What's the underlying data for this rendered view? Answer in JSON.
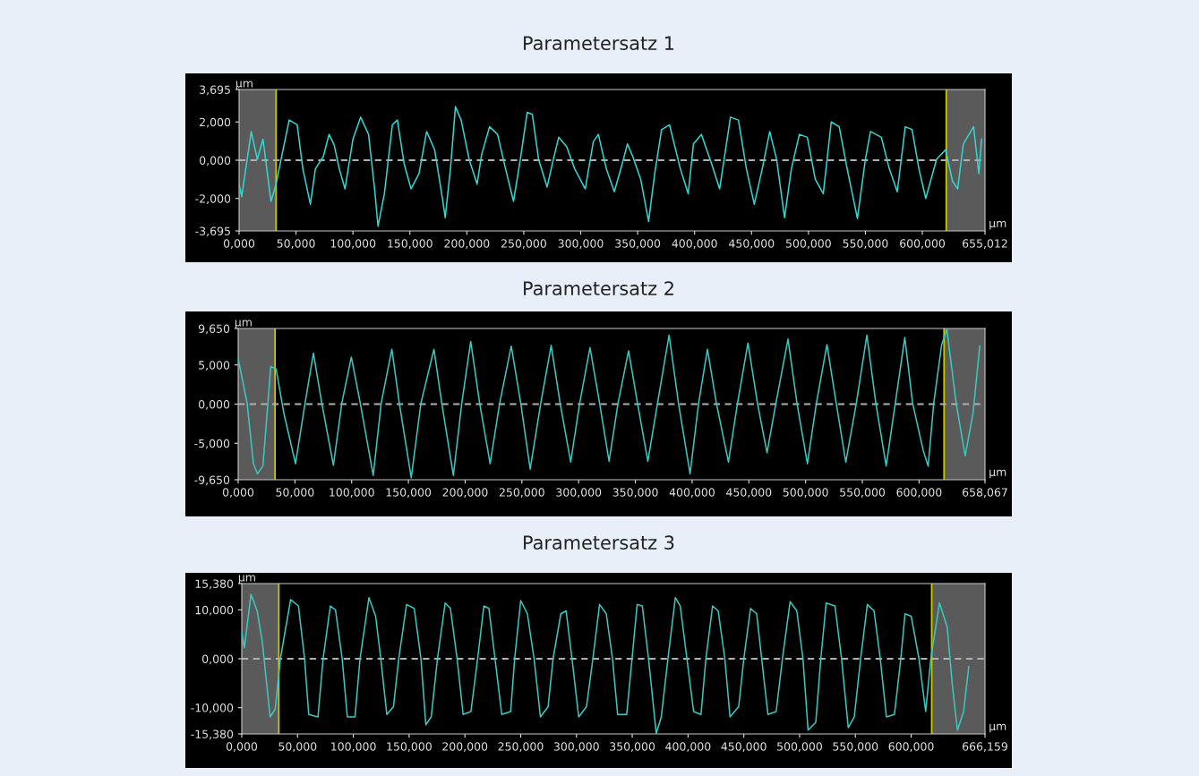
{
  "chart_data": [
    {
      "type": "line",
      "title": "Parametersatz 1",
      "xlabel": "µm",
      "ylabel": "µm",
      "xlim": [
        0,
        655.012
      ],
      "ylim": [
        -3.695,
        3.695
      ],
      "xticks": [
        {
          "value": 0,
          "label": "0,000"
        },
        {
          "value": 50,
          "label": "50,000"
        },
        {
          "value": 100,
          "label": "100,000"
        },
        {
          "value": 150,
          "label": "150,000"
        },
        {
          "value": 200,
          "label": "200,000"
        },
        {
          "value": 250,
          "label": "250,000"
        },
        {
          "value": 300,
          "label": "300,000"
        },
        {
          "value": 350,
          "label": "350,000"
        },
        {
          "value": 400,
          "label": "400,000"
        },
        {
          "value": 450,
          "label": "450,000"
        },
        {
          "value": 500,
          "label": "500,000"
        },
        {
          "value": 550,
          "label": "550,000"
        },
        {
          "value": 600,
          "label": "600,000"
        },
        {
          "value": 655.012,
          "label": "655,012"
        }
      ],
      "yticks": [
        {
          "value": -3.695,
          "label": "-3,695"
        },
        {
          "value": -2,
          "label": "-2,000"
        },
        {
          "value": 0,
          "label": "0,000"
        },
        {
          "value": 2,
          "label": "2,000"
        },
        {
          "value": 3.695,
          "label": "3,695"
        }
      ],
      "bands": [
        {
          "axis": "x",
          "from": 0,
          "to": 32.5,
          "color": "#5a5a5a"
        },
        {
          "axis": "x",
          "from": 621,
          "to": 655.012,
          "color": "#5a5a5a"
        }
      ],
      "ref_lines": [
        {
          "axis": "x",
          "value": 32.5,
          "color": "#c8c800"
        },
        {
          "axis": "x",
          "value": 621,
          "color": "#c8c800"
        },
        {
          "axis": "y",
          "value": 0,
          "color": "#b0b0b0",
          "line_style": "dashed"
        }
      ],
      "series": [
        {
          "color": "#33d6d0",
          "x": [
            0,
            2.3,
            10.7,
            16,
            21,
            28,
            32.5,
            36,
            44,
            51,
            56,
            62.6,
            67,
            74,
            79,
            83.5,
            88,
            93,
            100,
            106.7,
            113.7,
            119,
            122,
            127.6,
            134.6,
            139,
            145,
            151,
            158,
            164.7,
            171.7,
            178.6,
            181,
            185.6,
            190,
            195,
            202,
            209,
            213,
            220,
            227,
            234,
            241,
            247,
            253,
            257.5,
            263,
            270.5,
            276,
            280.7,
            287.7,
            294.7,
            304,
            311,
            315.5,
            322.5,
            329.5,
            336.4,
            341,
            345.7,
            352.7,
            359.6,
            365,
            371,
            378,
            387.5,
            394.4,
            399,
            406,
            415,
            422,
            431.5,
            438.5,
            445.5,
            452.4,
            459.4,
            466,
            472,
            479,
            485,
            492,
            499,
            506,
            513,
            520,
            527,
            534,
            543,
            550,
            554.5,
            564,
            571,
            578,
            585,
            591,
            597,
            603,
            612.5,
            620.4,
            626.5,
            631,
            636,
            645,
            649.6,
            652
          ],
          "values": [
            -1.25,
            -1.9,
            1.5,
            0.05,
            1.1,
            -2.15,
            -1.25,
            -0.2,
            2.1,
            1.85,
            -0.45,
            -2.3,
            -0.45,
            0.2,
            1.35,
            0.8,
            -0.45,
            -1.5,
            1.1,
            2.25,
            1.35,
            -1.5,
            -3.45,
            -1.75,
            1.85,
            2.1,
            -0.2,
            -1.5,
            -0.7,
            1.5,
            0.55,
            -2.0,
            -3.0,
            -0.45,
            2.8,
            2.1,
            0.05,
            -1.25,
            0.3,
            1.75,
            1.35,
            -0.45,
            -2.15,
            0.05,
            2.5,
            2.4,
            0.05,
            -1.4,
            0.05,
            1.2,
            0.7,
            -0.45,
            -1.5,
            0.95,
            1.35,
            -0.45,
            -1.65,
            -0.2,
            0.85,
            0.2,
            -1.0,
            -3.2,
            -0.7,
            1.6,
            1.85,
            -0.45,
            -1.75,
            0.85,
            1.35,
            -0.2,
            -1.5,
            2.25,
            2.1,
            -0.45,
            -2.3,
            -0.45,
            1.5,
            0.05,
            -3.0,
            -0.45,
            1.35,
            1.2,
            -1.0,
            -1.75,
            2.0,
            1.75,
            -0.45,
            -3.05,
            0.05,
            1.5,
            1.2,
            -0.45,
            -1.65,
            1.75,
            1.6,
            -0.45,
            -2.0,
            0.05,
            0.55,
            -1.1,
            -1.5,
            0.85,
            1.75,
            -0.7,
            1.1
          ]
        }
      ]
    },
    {
      "type": "line",
      "title": "Parametersatz 2",
      "xlabel": "µm",
      "ylabel": "µm",
      "xlim": [
        0,
        658.067
      ],
      "ylim": [
        -9.65,
        9.65
      ],
      "xticks": [
        {
          "value": 0,
          "label": "0,000"
        },
        {
          "value": 50,
          "label": "50,000"
        },
        {
          "value": 100,
          "label": "100,000"
        },
        {
          "value": 150,
          "label": "150,000"
        },
        {
          "value": 200,
          "label": "200,000"
        },
        {
          "value": 250,
          "label": "250,000"
        },
        {
          "value": 300,
          "label": "300,000"
        },
        {
          "value": 350,
          "label": "350,000"
        },
        {
          "value": 400,
          "label": "400,000"
        },
        {
          "value": 450,
          "label": "450,000"
        },
        {
          "value": 500,
          "label": "500,000"
        },
        {
          "value": 550,
          "label": "550,000"
        },
        {
          "value": 600,
          "label": "600,000"
        },
        {
          "value": 658.067,
          "label": "658,067"
        }
      ],
      "yticks": [
        {
          "value": -9.65,
          "label": "-9,650"
        },
        {
          "value": -5,
          "label": "-5,000"
        },
        {
          "value": 0,
          "label": "0,000"
        },
        {
          "value": 5,
          "label": "5,000"
        },
        {
          "value": 9.65,
          "label": "9,650"
        }
      ],
      "bands": [
        {
          "axis": "x",
          "from": 0,
          "to": 32.5,
          "color": "#5a5a5a"
        },
        {
          "axis": "x",
          "from": 622,
          "to": 658.067,
          "color": "#5a5a5a"
        }
      ],
      "ref_lines": [
        {
          "axis": "x",
          "value": 32.5,
          "color": "#c8c800"
        },
        {
          "axis": "x",
          "value": 622,
          "color": "#c8c800"
        },
        {
          "axis": "y",
          "value": 0,
          "color": "#b0b0b0",
          "line_style": "dashed"
        }
      ],
      "series": [
        {
          "color": "#3cc8c0",
          "x": [
            0,
            7.9,
            13.4,
            17,
            21.8,
            28.7,
            33.4,
            40.3,
            50.5,
            58.9,
            66.3,
            73.7,
            83.9,
            91.3,
            99.7,
            107.6,
            119,
            126,
            135.4,
            142,
            152.5,
            161,
            172.5,
            179.4,
            189.6,
            197,
            204.9,
            212.8,
            222,
            230.4,
            240.6,
            249,
            257.3,
            266.6,
            275.8,
            283.7,
            293,
            300.9,
            310,
            318.5,
            326.8,
            334.7,
            344,
            351.9,
            361,
            369.5,
            379.7,
            388,
            398.2,
            405.7,
            413.5,
            421.4,
            432,
            440,
            449.2,
            457.6,
            466,
            473.8,
            484.5,
            492.4,
            501.6,
            509.5,
            518.8,
            527,
            535.4,
            544.7,
            554,
            561.9,
            571,
            579,
            587.4,
            594.3,
            603.6,
            608,
            612.9,
            619.8,
            624.4,
            632.7,
            640.6,
            647.5,
            653.5
          ],
          "values": [
            5.8,
            0.1,
            -7.6,
            -8.9,
            -7.9,
            4.8,
            4.5,
            -1.2,
            -7.6,
            0.1,
            6.5,
            0.1,
            -7.8,
            0.1,
            6.0,
            0.1,
            -9.1,
            0.1,
            7.0,
            0.1,
            -9.4,
            0.1,
            7.0,
            0.1,
            -9.1,
            0.1,
            8.0,
            0.1,
            -7.6,
            0.1,
            7.4,
            0.1,
            -8.3,
            0.1,
            7.5,
            0.1,
            -7.4,
            0.1,
            7.2,
            0.1,
            -7.3,
            0.1,
            6.8,
            0.1,
            -7.3,
            0.1,
            8.8,
            0.1,
            -8.9,
            0.1,
            7.0,
            0.1,
            -7.4,
            0.1,
            7.8,
            0.1,
            -6.2,
            0.1,
            8.3,
            0.1,
            -7.6,
            0.1,
            7.6,
            0.1,
            -7.4,
            0.1,
            8.8,
            0.1,
            -7.9,
            0.1,
            8.5,
            0.1,
            -5.9,
            -7.9,
            0.1,
            7.5,
            9.6,
            0.1,
            -6.6,
            -1.2,
            7.4
          ]
        }
      ]
    },
    {
      "type": "line",
      "title": "Parametersatz 3",
      "xlabel": "µm",
      "ylabel": "µm",
      "xlim": [
        0,
        666.159
      ],
      "ylim": [
        -15.38,
        15.38
      ],
      "xticks": [
        {
          "value": 0,
          "label": "0,000"
        },
        {
          "value": 50,
          "label": "50,000"
        },
        {
          "value": 100,
          "label": "100,000"
        },
        {
          "value": 150,
          "label": "150,000"
        },
        {
          "value": 200,
          "label": "200,000"
        },
        {
          "value": 250,
          "label": "250,000"
        },
        {
          "value": 300,
          "label": "300,000"
        },
        {
          "value": 350,
          "label": "350,000"
        },
        {
          "value": 400,
          "label": "400,000"
        },
        {
          "value": 450,
          "label": "450,000"
        },
        {
          "value": 500,
          "label": "500,000"
        },
        {
          "value": 550,
          "label": "550,000"
        },
        {
          "value": 600,
          "label": "600,000"
        },
        {
          "value": 666.159,
          "label": "666,159"
        }
      ],
      "yticks": [
        {
          "value": -15.38,
          "label": "-15,380"
        },
        {
          "value": -10,
          "label": "-10,000"
        },
        {
          "value": 0,
          "label": "0,000"
        },
        {
          "value": 10,
          "label": "10,000"
        },
        {
          "value": 15.38,
          "label": "15,380"
        }
      ],
      "bands": [
        {
          "axis": "x",
          "from": 0,
          "to": 33.2,
          "color": "#5a5a5a"
        },
        {
          "axis": "x",
          "from": 618.4,
          "to": 666.159,
          "color": "#5a5a5a"
        }
      ],
      "ref_lines": [
        {
          "axis": "x",
          "value": 33.2,
          "color": "#c8c800"
        },
        {
          "axis": "x",
          "value": 618.4,
          "color": "#c8c800"
        },
        {
          "axis": "y",
          "value": 0,
          "color": "#b0b0b0",
          "line_style": "dashed"
        }
      ],
      "series": [
        {
          "color": "#3cc8c0",
          "x": [
            0,
            2.3,
            8.3,
            13.8,
            18.5,
            25.4,
            30,
            34.6,
            43.8,
            50.8,
            56.3,
            60,
            68.3,
            72.9,
            79.4,
            84,
            90,
            94.6,
            101.5,
            106,
            114,
            120,
            124.6,
            130,
            136,
            140.7,
            147.7,
            154.6,
            160.6,
            165,
            169.8,
            175.4,
            182.3,
            187,
            193,
            198.4,
            205.4,
            211.4,
            217,
            221.5,
            227,
            233,
            241,
            244.6,
            250,
            256,
            262,
            267.7,
            274.6,
            279,
            286,
            290.7,
            296,
            302,
            309,
            314.7,
            320.7,
            326.7,
            332.3,
            336.9,
            345,
            349.8,
            354.4,
            359,
            364.6,
            371.5,
            376,
            382,
            388.6,
            393,
            399,
            405,
            411.6,
            416,
            422,
            427,
            433,
            437.6,
            445.4,
            450,
            456,
            461.5,
            466,
            471.6,
            479,
            484.6,
            491.5,
            497.5,
            503,
            507.6,
            514.5,
            519,
            523.8,
            531.7,
            537.6,
            543.6,
            549,
            554.7,
            560.7,
            566.7,
            572.3,
            577.8,
            585,
            590.7,
            594.5,
            600,
            607,
            613,
            617.6,
            625.4,
            632.3,
            636.9,
            641.5,
            647,
            651.6
          ],
          "values": [
            5.4,
            2.2,
            13.2,
            9.8,
            3.3,
            -11.9,
            -10.3,
            0,
            12.1,
            10.8,
            0,
            -11.4,
            -11.9,
            0,
            10.8,
            10,
            0,
            -11.9,
            -11.9,
            0,
            12.5,
            8.7,
            0,
            -11.4,
            -9.8,
            0,
            11.1,
            10.3,
            0,
            -13.5,
            -11.9,
            0,
            11.4,
            10.3,
            0,
            -11.4,
            -10.8,
            0,
            10.8,
            10.3,
            0,
            -11.4,
            -10.8,
            0,
            11.9,
            9.2,
            0,
            -11.9,
            -9.8,
            0,
            9.2,
            9.8,
            0,
            -11.9,
            -9.8,
            0,
            11.1,
            9.2,
            0,
            -11.4,
            -11.4,
            0,
            11.1,
            10.8,
            0,
            -15.3,
            -11.9,
            0,
            12.5,
            10.8,
            0,
            -10.8,
            -11.4,
            0,
            10.8,
            9.8,
            0,
            -11.9,
            -9.8,
            0,
            10.3,
            9.2,
            0,
            -11.4,
            -10.8,
            0,
            11.7,
            9.8,
            0,
            -14.6,
            -13,
            0,
            11.4,
            10.8,
            0,
            -14.1,
            -11.9,
            0,
            11.1,
            9.8,
            0,
            -11.9,
            -11.4,
            0,
            9.2,
            8.7,
            0,
            -10.8,
            0,
            11.4,
            6.5,
            -5.4,
            -14.6,
            -10.8,
            -1.6
          ]
        }
      ]
    }
  ]
}
